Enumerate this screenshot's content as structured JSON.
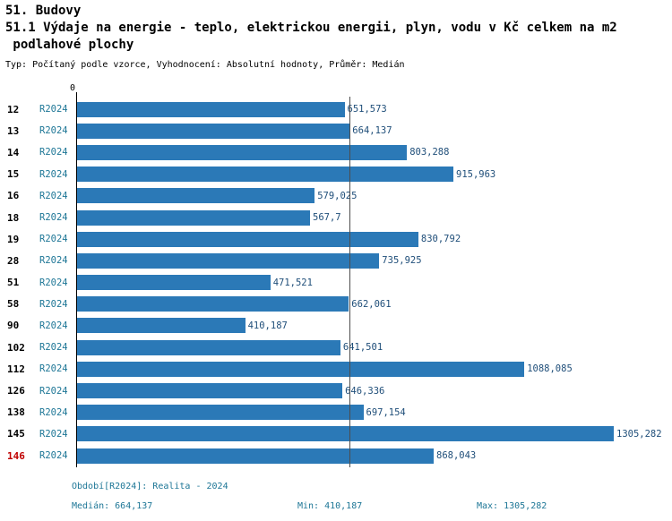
{
  "header": {
    "lines": [
      "51. Budovy",
      "51.1 Výdaje na energie - teplo, elektrickou energii, plyn, vodu v Kč celkem na m2",
      " podlahové plochy"
    ],
    "subtitle": "Typ: Počítaný podle vzorce, Vyhodnocení: Absolutní hodnoty, Průměr: Medián"
  },
  "chart_data": {
    "type": "bar",
    "orientation": "horizontal",
    "x_axis_zero_label": "0",
    "series_label": "R2024",
    "median": 664.137,
    "xlim": [
      0,
      1305.282
    ],
    "rows": [
      {
        "id": "12",
        "value": 651.573,
        "label": "651,573",
        "highlight": false
      },
      {
        "id": "13",
        "value": 664.137,
        "label": "664,137",
        "highlight": false
      },
      {
        "id": "14",
        "value": 803.288,
        "label": "803,288",
        "highlight": false
      },
      {
        "id": "15",
        "value": 915.963,
        "label": "915,963",
        "highlight": false
      },
      {
        "id": "16",
        "value": 579.025,
        "label": "579,025",
        "highlight": false
      },
      {
        "id": "18",
        "value": 567.7,
        "label": "567,7",
        "highlight": false
      },
      {
        "id": "19",
        "value": 830.792,
        "label": "830,792",
        "highlight": false
      },
      {
        "id": "28",
        "value": 735.925,
        "label": "735,925",
        "highlight": false
      },
      {
        "id": "51",
        "value": 471.521,
        "label": "471,521",
        "highlight": false
      },
      {
        "id": "58",
        "value": 662.061,
        "label": "662,061",
        "highlight": false
      },
      {
        "id": "90",
        "value": 410.187,
        "label": "410,187",
        "highlight": false
      },
      {
        "id": "102",
        "value": 641.501,
        "label": "641,501",
        "highlight": false
      },
      {
        "id": "112",
        "value": 1088.085,
        "label": "1088,085",
        "highlight": false
      },
      {
        "id": "126",
        "value": 646.336,
        "label": "646,336",
        "highlight": false
      },
      {
        "id": "138",
        "value": 697.154,
        "label": "697,154",
        "highlight": false
      },
      {
        "id": "145",
        "value": 1305.282,
        "label": "1305,282",
        "highlight": false
      },
      {
        "id": "146",
        "value": 868.043,
        "label": "868,043",
        "highlight": true
      }
    ]
  },
  "footer": {
    "period": "Období[R2024]: Realita - 2024",
    "median": "Medián: 664,137",
    "min": "Min: 410,187",
    "max": "Max: 1305,282"
  },
  "colors": {
    "bar": "#2b79b7",
    "value_text": "#1f4e79",
    "series_text": "#1d7696",
    "footer_text": "#1d7696",
    "highlight_id": "#c00000",
    "axis": "#000000",
    "median_line": "#4d4d4d"
  }
}
